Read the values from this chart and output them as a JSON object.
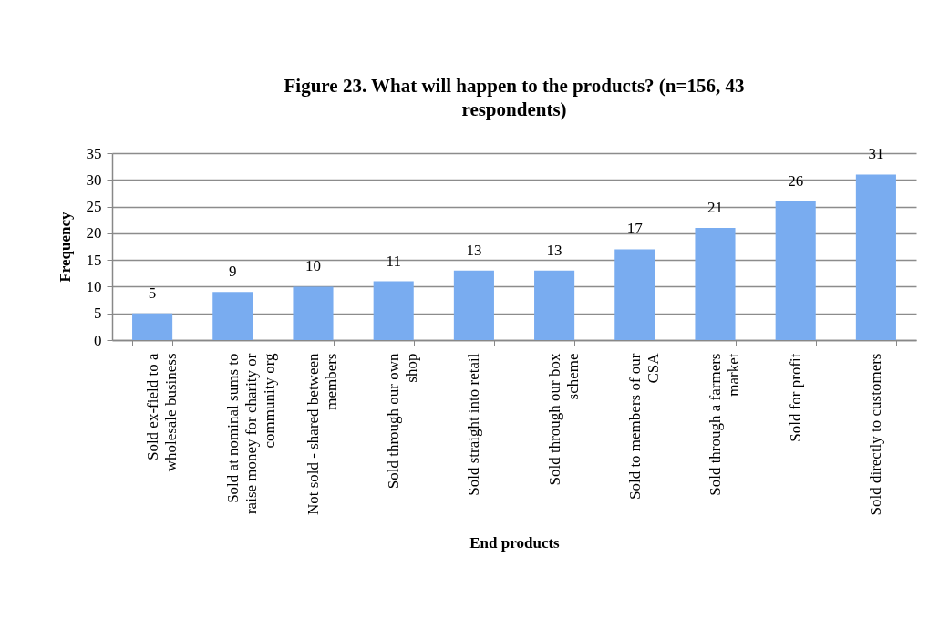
{
  "chart_data": {
    "type": "bar",
    "title": "Figure 23. What will happen to the products? (n=156, 43 respondents)",
    "xlabel": "End products",
    "ylabel": "Frequency",
    "categories": [
      "Sold ex-field to a wholesale business",
      "Sold at nominal sums to raise money for charity or community org",
      "Not sold - shared between members",
      "Sold through our own shop",
      "Sold straight into retail",
      "Sold through our box scheme",
      "Sold to members of our CSA",
      "Sold through a farmers market",
      "Sold for profit",
      "Sold directly to customers"
    ],
    "values": [
      5,
      9,
      10,
      11,
      13,
      13,
      17,
      21,
      26,
      31
    ],
    "color": "#79acf0",
    "ylim": [
      0,
      35
    ],
    "yticks": [
      0,
      5,
      10,
      15,
      20,
      25,
      30,
      35
    ],
    "grid": "y",
    "data_labels": true
  }
}
